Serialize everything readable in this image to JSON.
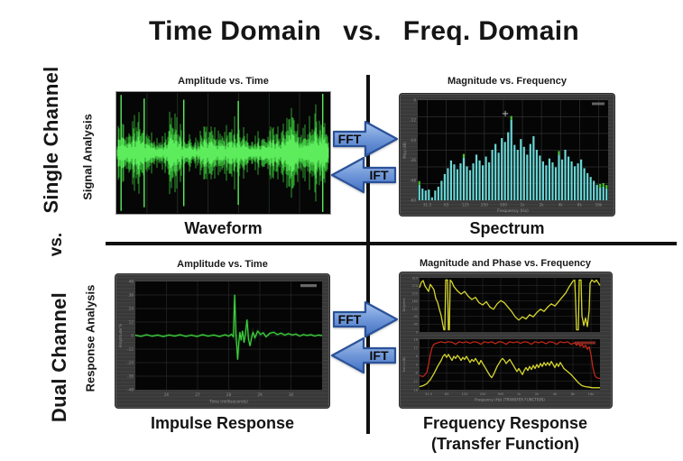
{
  "title": {
    "left": "Time Domain",
    "vs": "vs.",
    "right": "Freq. Domain"
  },
  "left_labels": {
    "single_channel": "Single Channel",
    "signal_analysis": "Signal Analysis",
    "vs": "vs.",
    "dual_channel": "Dual Channel",
    "response_analysis": "Response Analysis"
  },
  "arrows": {
    "fft": "FFT",
    "ift": "IFT"
  },
  "quadrants": {
    "waveform": {
      "axis_label": "Amplitude vs. Time",
      "caption": "Waveform"
    },
    "spectrum": {
      "axis_label": "Magnitude vs. Frequency",
      "caption": "Spectrum"
    },
    "impulse": {
      "axis_label": "Amplitude vs. Time",
      "caption": "Impulse Response"
    },
    "transfer": {
      "axis_label": "Magnitude and Phase vs. Frequency",
      "caption_1": "Frequency Response",
      "caption_2": "(Transfer Function)"
    }
  },
  "colors": {
    "wave_outer": "#2fa52f",
    "wave_inner": "#5cec5c",
    "bar": "#6ad6d6",
    "peak": "#46c42e",
    "impulse": "#3ed23e",
    "trace_yellow": "#d6d62e",
    "trace_red": "#cc2817",
    "arrow_fill_top": "#a9c5ee",
    "arrow_fill_bottom": "#4272c4",
    "arrow_stroke": "#2b5298",
    "divider": "#101010"
  },
  "chart_data": [
    {
      "id": "waveform",
      "type": "area",
      "title": "Amplitude vs. Time",
      "description": "dense audio waveform, green on black, amplitude bursts over time",
      "envelope": [
        0.45,
        0.62,
        0.55,
        0.68,
        0.82,
        0.95,
        0.88,
        0.62,
        0.42,
        0.3,
        0.36,
        0.55,
        0.78,
        0.88,
        0.72,
        0.48,
        0.32,
        0.4,
        0.32,
        0.46,
        0.62,
        0.74,
        0.62,
        0.46,
        0.52,
        0.64,
        0.56,
        0.7,
        0.62,
        0.46,
        0.36,
        0.32,
        0.46,
        0.62,
        0.72,
        0.64,
        0.52,
        0.56,
        0.66,
        0.76,
        0.86,
        0.72,
        0.52,
        0.64,
        0.82,
        0.9,
        0.76,
        0.56,
        0.42
      ],
      "spikes": [
        [
          2.2,
          0.98
        ],
        [
          13,
          0.92
        ],
        [
          31.5,
          0.9
        ],
        [
          57,
          0.88
        ],
        [
          96.5,
          1.0
        ]
      ]
    },
    {
      "id": "spectrum",
      "type": "bar",
      "title": "Magnitude vs. Frequency",
      "x_label": "Frequency (Hz)",
      "y_label": "Mag (dB)",
      "x_ticks": [
        "31.5",
        "63",
        "125",
        "250",
        "500",
        "1k",
        "2k",
        "4k",
        "8k",
        "16k"
      ],
      "y_ticks": [
        "0",
        "-12",
        "-24",
        "-36",
        "-48",
        "-60"
      ],
      "bars": [
        0.16,
        0.12,
        0.1,
        0.11,
        0.03,
        0.1,
        0.14,
        0.2,
        0.27,
        0.33,
        0.41,
        0.37,
        0.32,
        0.38,
        0.44,
        0.35,
        0.31,
        0.38,
        0.47,
        0.41,
        0.36,
        0.45,
        0.39,
        0.52,
        0.58,
        0.49,
        0.64,
        0.6,
        0.7,
        0.83,
        0.57,
        0.52,
        0.63,
        0.55,
        0.47,
        0.58,
        0.66,
        0.52,
        0.46,
        0.4,
        0.36,
        0.43,
        0.39,
        0.34,
        0.47,
        0.42,
        0.52,
        0.45,
        0.4,
        0.35,
        0.38,
        0.42,
        0.33,
        0.28,
        0.24,
        0.2,
        0.16,
        0.13,
        0.14,
        0.12
      ],
      "peak_indices": [
        0,
        14,
        29,
        44,
        57,
        58,
        59
      ]
    },
    {
      "id": "impulse",
      "type": "line",
      "title": "Amplitude vs. Time",
      "x_label": "Time (milliseconds)",
      "y_label": "Amplitude %",
      "x_ticks": [
        "26",
        "27",
        "28",
        "29",
        "30"
      ],
      "y_ticks": [
        "48",
        "36",
        "24",
        "12",
        "0",
        "-12",
        "-24",
        "-36",
        "-48"
      ],
      "y_range": [
        -48,
        48
      ],
      "points": [
        [
          0,
          0.4
        ],
        [
          3,
          -0.6
        ],
        [
          6,
          0.7
        ],
        [
          9,
          -0.5
        ],
        [
          12,
          0.5
        ],
        [
          15,
          -0.8
        ],
        [
          18,
          0.6
        ],
        [
          21,
          -0.4
        ],
        [
          24,
          0.7
        ],
        [
          27,
          -0.6
        ],
        [
          30,
          0.5
        ],
        [
          33,
          -0.7
        ],
        [
          36,
          0.8
        ],
        [
          39,
          -0.5
        ],
        [
          42,
          0.6
        ],
        [
          45,
          -0.8
        ],
        [
          48,
          0.7
        ],
        [
          50,
          -0.5
        ],
        [
          51.5,
          1.2
        ],
        [
          52.5,
          -1
        ],
        [
          53.2,
          36
        ],
        [
          53.8,
          2
        ],
        [
          54.3,
          -8
        ],
        [
          54.8,
          -21
        ],
        [
          55.4,
          -6
        ],
        [
          56,
          3
        ],
        [
          56.6,
          -4
        ],
        [
          57.4,
          4
        ],
        [
          58.2,
          -6
        ],
        [
          59,
          2
        ],
        [
          59.8,
          14
        ],
        [
          60.6,
          -3
        ],
        [
          61.4,
          -9
        ],
        [
          62.2,
          -2
        ],
        [
          63,
          3
        ],
        [
          64,
          -2
        ],
        [
          65.5,
          4
        ],
        [
          67,
          1
        ],
        [
          68.5,
          2.5
        ],
        [
          70,
          -1
        ],
        [
          72,
          2
        ],
        [
          74,
          3
        ],
        [
          76,
          1
        ],
        [
          78,
          2.2
        ],
        [
          80,
          0.5
        ],
        [
          82,
          1.8
        ],
        [
          84,
          0.6
        ],
        [
          86,
          1.4
        ],
        [
          88,
          -0.4
        ],
        [
          90,
          1
        ],
        [
          92,
          0.2
        ],
        [
          94,
          0.8
        ],
        [
          96,
          -0.3
        ],
        [
          98,
          0.5
        ],
        [
          100,
          0
        ]
      ]
    },
    {
      "id": "transfer",
      "type": "line",
      "title": "Magnitude and Phase vs. Frequency",
      "x_label": "Frequency (Hz) (TRANSFER FUNCTION)",
      "x_ticks": [
        "31.5",
        "63",
        "125",
        "250",
        "500",
        "1k",
        "2k",
        "4k",
        "8k",
        "16k"
      ],
      "phase": {
        "y_label": "Degrees",
        "y_ticks": [
          "315",
          "270",
          "225",
          "180",
          "135",
          "90",
          "45",
          "0"
        ],
        "points": [
          [
            0,
            82
          ],
          [
            1,
            92
          ],
          [
            2,
            95
          ],
          [
            3,
            85
          ],
          [
            5,
            75
          ],
          [
            6,
            88
          ],
          [
            8,
            78
          ],
          [
            9,
            62
          ],
          [
            10,
            55
          ],
          [
            11,
            42
          ],
          [
            12,
            30
          ],
          [
            13,
            12
          ],
          [
            13.5,
            4
          ],
          [
            14,
            4
          ],
          [
            14.5,
            96
          ],
          [
            15.5,
            96
          ],
          [
            16,
            4
          ],
          [
            16.5,
            4
          ],
          [
            17,
            96
          ],
          [
            18,
            92
          ],
          [
            19,
            84
          ],
          [
            21,
            76
          ],
          [
            23,
            70
          ],
          [
            25,
            75
          ],
          [
            27,
            66
          ],
          [
            29,
            60
          ],
          [
            31,
            64
          ],
          [
            33,
            54
          ],
          [
            35,
            50
          ],
          [
            37,
            56
          ],
          [
            39,
            46
          ],
          [
            41,
            42
          ],
          [
            43,
            52
          ],
          [
            45,
            58
          ],
          [
            47,
            54
          ],
          [
            49,
            46
          ],
          [
            51,
            38
          ],
          [
            53,
            28
          ],
          [
            55,
            22
          ],
          [
            57,
            28
          ],
          [
            59,
            24
          ],
          [
            61,
            32
          ],
          [
            63,
            28
          ],
          [
            65,
            36
          ],
          [
            67,
            42
          ],
          [
            69,
            38
          ],
          [
            71,
            46
          ],
          [
            73,
            52
          ],
          [
            75,
            48
          ],
          [
            77,
            56
          ],
          [
            79,
            64
          ],
          [
            81,
            72
          ],
          [
            83,
            84
          ],
          [
            85,
            94
          ],
          [
            86,
            96
          ],
          [
            86.5,
            55
          ],
          [
            87,
            4
          ],
          [
            88,
            4
          ],
          [
            88.5,
            96
          ],
          [
            89.5,
            96
          ],
          [
            90,
            30
          ],
          [
            91,
            12
          ],
          [
            92,
            26
          ],
          [
            93,
            10
          ],
          [
            94,
            40
          ],
          [
            94.5,
            90
          ],
          [
            95.5,
            96
          ],
          [
            97,
            92
          ],
          [
            98,
            96
          ],
          [
            100,
            86
          ]
        ]
      },
      "coherence": {
        "points": [
          [
            0,
            28
          ],
          [
            2,
            26
          ],
          [
            4,
            34
          ],
          [
            5,
            50
          ],
          [
            6,
            70
          ],
          [
            7,
            84
          ],
          [
            8,
            90
          ],
          [
            10,
            93
          ],
          [
            12,
            95
          ],
          [
            14,
            93
          ],
          [
            16,
            95
          ],
          [
            18,
            94
          ],
          [
            20,
            90
          ],
          [
            22,
            95
          ],
          [
            24,
            93
          ],
          [
            26,
            95
          ],
          [
            28,
            92
          ],
          [
            30,
            95
          ],
          [
            32,
            94
          ],
          [
            34,
            90
          ],
          [
            36,
            95
          ],
          [
            38,
            93
          ],
          [
            40,
            95
          ],
          [
            42,
            91
          ],
          [
            44,
            95
          ],
          [
            46,
            94
          ],
          [
            48,
            90
          ],
          [
            50,
            95
          ],
          [
            52,
            93
          ],
          [
            54,
            95
          ],
          [
            56,
            92
          ],
          [
            58,
            95
          ],
          [
            60,
            94
          ],
          [
            62,
            90
          ],
          [
            64,
            95
          ],
          [
            66,
            93
          ],
          [
            68,
            95
          ],
          [
            70,
            91
          ],
          [
            72,
            95
          ],
          [
            74,
            94
          ],
          [
            76,
            90
          ],
          [
            78,
            95
          ],
          [
            80,
            93
          ],
          [
            82,
            95
          ],
          [
            84,
            90
          ],
          [
            86,
            93
          ],
          [
            87,
            88
          ],
          [
            88,
            92
          ],
          [
            89,
            86
          ],
          [
            90,
            90
          ],
          [
            91,
            84
          ],
          [
            92,
            88
          ],
          [
            93,
            80
          ],
          [
            94,
            85
          ],
          [
            95,
            70
          ],
          [
            96,
            45
          ],
          [
            97,
            30
          ],
          [
            98,
            24
          ],
          [
            100,
            22
          ]
        ]
      },
      "magnitude": {
        "points": [
          [
            0,
            6
          ],
          [
            2,
            8
          ],
          [
            4,
            12
          ],
          [
            6,
            20
          ],
          [
            8,
            32
          ],
          [
            10,
            46
          ],
          [
            12,
            58
          ],
          [
            13,
            66
          ],
          [
            14,
            70
          ],
          [
            15,
            64
          ],
          [
            16,
            70
          ],
          [
            17,
            64
          ],
          [
            18,
            58
          ],
          [
            19,
            66
          ],
          [
            20,
            62
          ],
          [
            21,
            68
          ],
          [
            22,
            64
          ],
          [
            23,
            58
          ],
          [
            24,
            64
          ],
          [
            25,
            60
          ],
          [
            26,
            66
          ],
          [
            27,
            60
          ],
          [
            28,
            54
          ],
          [
            29,
            60
          ],
          [
            30,
            56
          ],
          [
            31,
            62
          ],
          [
            32,
            56
          ],
          [
            33,
            50
          ],
          [
            34,
            58
          ],
          [
            35,
            52
          ],
          [
            36,
            46
          ],
          [
            37,
            40
          ],
          [
            38,
            34
          ],
          [
            39,
            28
          ],
          [
            40,
            24
          ],
          [
            41,
            30
          ],
          [
            42,
            38
          ],
          [
            43,
            46
          ],
          [
            44,
            52
          ],
          [
            45,
            58
          ],
          [
            46,
            62
          ],
          [
            47,
            58
          ],
          [
            48,
            52
          ],
          [
            49,
            56
          ],
          [
            50,
            60
          ],
          [
            51,
            54
          ],
          [
            52,
            48
          ],
          [
            53,
            42
          ],
          [
            54,
            36
          ],
          [
            55,
            42
          ],
          [
            56,
            36
          ],
          [
            57,
            30
          ],
          [
            58,
            38
          ],
          [
            59,
            44
          ],
          [
            60,
            38
          ],
          [
            61,
            46
          ],
          [
            62,
            40
          ],
          [
            63,
            48
          ],
          [
            64,
            42
          ],
          [
            65,
            50
          ],
          [
            66,
            44
          ],
          [
            67,
            52
          ],
          [
            68,
            46
          ],
          [
            69,
            54
          ],
          [
            70,
            48
          ],
          [
            71,
            54
          ],
          [
            72,
            48
          ],
          [
            73,
            56
          ],
          [
            74,
            50
          ],
          [
            75,
            44
          ],
          [
            76,
            52
          ],
          [
            77,
            46
          ],
          [
            78,
            54
          ],
          [
            79,
            48
          ],
          [
            80,
            42
          ],
          [
            82,
            36
          ],
          [
            84,
            30
          ],
          [
            86,
            22
          ],
          [
            88,
            14
          ],
          [
            90,
            8
          ],
          [
            92,
            6
          ],
          [
            94,
            5
          ],
          [
            96,
            4
          ],
          [
            100,
            4
          ]
        ]
      },
      "y_ticks_lower": [
        "18",
        "12",
        "6",
        "0",
        "-6",
        "-12",
        "-18"
      ],
      "y_label_lower": "Gain (dB)"
    }
  ]
}
